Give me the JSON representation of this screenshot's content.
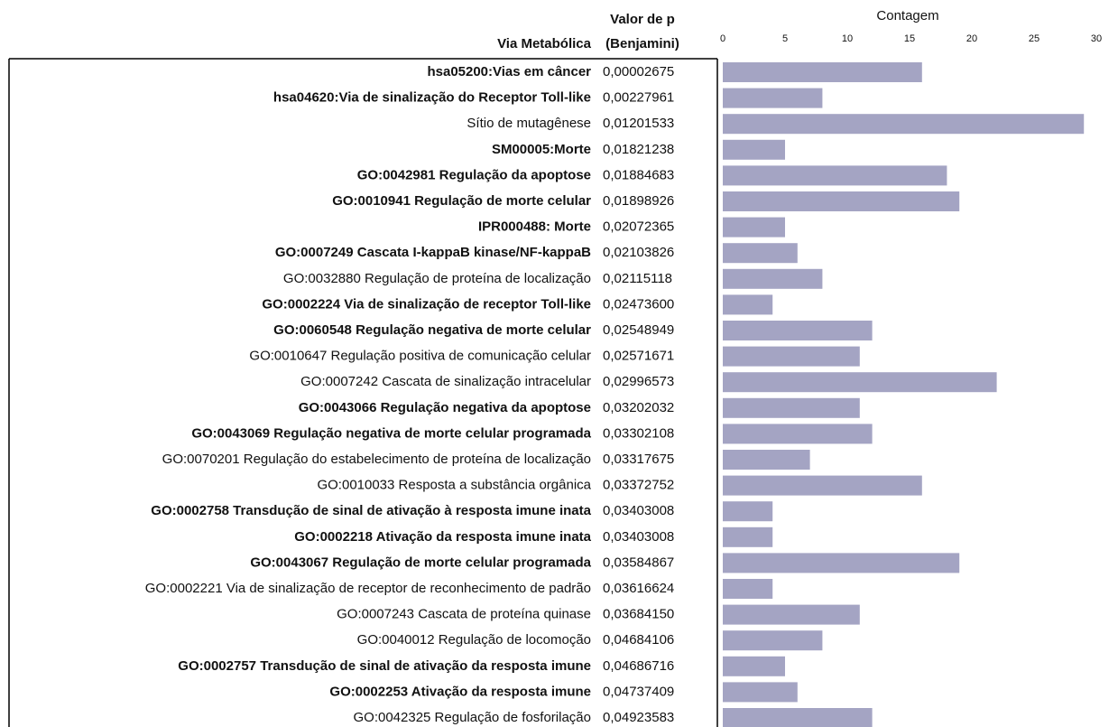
{
  "chart_data": {
    "type": "barh",
    "x_label": "Contagem",
    "category_header": "Via Metabólica",
    "p_header": [
      "Valor de p",
      "(Benjamini)"
    ],
    "categories": [
      "hsa05200:Vias em câncer",
      "hsa04620:Via de sinalização do Receptor Toll-like",
      "Sítio de mutagênese",
      "SM00005:Morte",
      "GO:0042981 Regulação da apoptose",
      "GO:0010941 Regulação de morte celular",
      "IPR000488: Morte",
      "GO:0007249 Cascata I-kappaB kinase/NF-kappaB",
      "GO:0032880 Regulação de proteína de localização",
      "GO:0002224 Via de sinalização de receptor Toll-like",
      "GO:0060548 Regulação negativa de morte celular",
      "GO:0010647 Regulação positiva de comunicação celular",
      "GO:0007242 Cascata de sinalização intracelular",
      "GO:0043066 Regulação negativa da apoptose",
      "GO:0043069 Regulação negativa de morte celular programada",
      "GO:0070201 Regulação do estabelecimento de proteína de localização",
      "GO:0010033 Resposta a substância orgânica",
      "GO:0002758 Transdução de sinal de ativação à resposta imune inata",
      "GO:0002218 Ativação da resposta imune inata",
      "GO:0043067 Regulação de morte celular programada",
      "GO:0002221 Via de sinalização de receptor de reconhecimento de padrão",
      "GO:0007243 Cascata de proteína quinase",
      "GO:0040012 Regulação de locomoção",
      "GO:0002757 Transdução de sinal de ativação da resposta imune",
      "GO:0002253 Ativação da resposta imune",
      "GO:0042325 Regulação de fosforilação"
    ],
    "label_colors": [
      "#3a5ea8",
      "#c4161c",
      "#111111",
      "#3a5ea8",
      "#3a5ea8",
      "#3a5ea8",
      "#3a5ea8",
      "#c4161c",
      "#111111",
      "#c4161c",
      "#3a5ea8",
      "#111111",
      "#111111",
      "#3a5ea8",
      "#3a5ea8",
      "#111111",
      "#111111",
      "#c4161c",
      "#c4161c",
      "#3a5ea8",
      "#111111",
      "#111111",
      "#111111",
      "#c4161c",
      "#c4161c",
      "#111111"
    ],
    "p_values": [
      "0,00002675",
      "0,00227961",
      "0,01201533",
      "0,01821238",
      "0,01884683",
      "0,01898926",
      "0,02072365",
      "0,02103826",
      "0,02115118",
      "0,02473600",
      "0,02548949",
      "0,02571671",
      "0,02996573",
      "0,03202032",
      "0,03302108",
      "0,03317675",
      "0,03372752",
      "0,03403008",
      "0,03403008",
      "0,03584867",
      "0,03616624",
      "0,03684150",
      "0,04684106",
      "0,04686716",
      "0,04737409",
      "0,04923583"
    ],
    "values": [
      16,
      8,
      29,
      5,
      18,
      19,
      5,
      6,
      8,
      4,
      12,
      11,
      22,
      11,
      12,
      7,
      16,
      4,
      4,
      19,
      4,
      11,
      8,
      5,
      6,
      12
    ],
    "color": "#a4a4c3",
    "xlim": [
      0,
      30
    ],
    "xticks": [
      0,
      5,
      10,
      15,
      20,
      25,
      30
    ]
  }
}
